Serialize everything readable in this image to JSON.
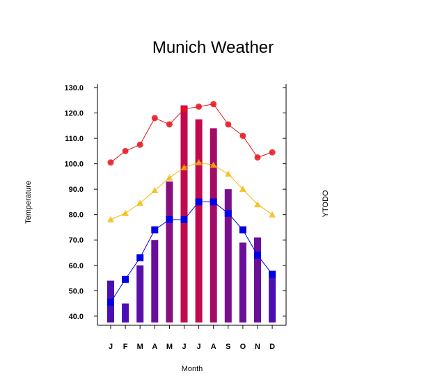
{
  "chart_data": {
    "type": "bar",
    "title": "Munich Weather",
    "xlabel": "Month",
    "ylabel": "Temperature",
    "y2label": "YTODO",
    "ylim": [
      37.5,
      130
    ],
    "yticks": [
      "130.0",
      "120.0",
      "110.0",
      "100.0",
      "90.0",
      "80.0",
      "70.0",
      "60.0",
      "50.0",
      "40.0"
    ],
    "categories": [
      "J",
      "F",
      "M",
      "A",
      "M",
      "J",
      "J",
      "A",
      "S",
      "O",
      "N",
      "D"
    ],
    "bars": {
      "values": [
        54,
        45,
        60,
        70,
        93,
        123,
        117.5,
        114,
        90,
        69,
        71,
        57
      ],
      "colors": [
        "#4B0FB3",
        "#4B0FB3",
        "#5A0FA6",
        "#690F99",
        "#870F80",
        "#C3094E",
        "#C3094E",
        "#A50A66",
        "#780F8C",
        "#690F99",
        "#690F99",
        "#4B0FB3"
      ]
    },
    "series": [
      {
        "type": "line",
        "marker": "circle",
        "color": "#E8101A",
        "values": [
          100.5,
          105,
          107.5,
          118,
          115.5,
          121.5,
          122.5,
          123.5,
          115.5,
          111,
          102.5,
          104.5
        ]
      },
      {
        "type": "line",
        "marker": "triangle",
        "color": "#F5B800",
        "values": [
          78,
          80.5,
          84.5,
          89.5,
          94.5,
          98.5,
          100.5,
          99.5,
          96,
          90,
          84,
          80
        ]
      },
      {
        "type": "line",
        "marker": "square",
        "color": "#0000E6",
        "values": [
          45.5,
          54.5,
          63,
          74,
          78,
          78,
          85,
          85,
          80.5,
          74,
          64,
          56.5
        ]
      }
    ]
  }
}
